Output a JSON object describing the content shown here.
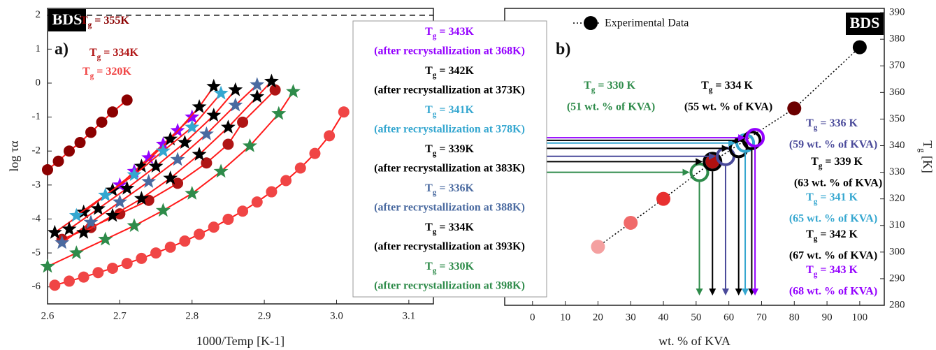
{
  "chart_data": [
    {
      "type": "scatter",
      "x_label": "1000/Temp [K-1]",
      "y_label": "log τα",
      "badge": "BDS",
      "panel": "a)",
      "xlim": [
        2.6,
        3.134
      ],
      "ylim": [
        -6.5,
        2.2
      ],
      "xticks": [
        2.6,
        2.7,
        2.8,
        2.9,
        {
          "value": 3,
          "label": "3.0"
        },
        3.1
      ],
      "yticks": [
        -6,
        -5,
        -4,
        -3,
        -2,
        -1,
        0,
        1,
        2
      ],
      "hline": 2,
      "fit_color": "#ff1a1a",
      "series": [
        {
          "name": "Tg = 355K",
          "color": "#8b0000",
          "marker": "circle",
          "x": [
            2.6,
            2.615,
            2.63,
            2.645,
            2.66,
            2.675,
            2.69,
            2.71
          ],
          "values": [
            -2.55,
            -2.3,
            -2.0,
            -1.75,
            -1.45,
            -1.15,
            -0.85,
            -0.5
          ]
        },
        {
          "name": "Tg = 334K",
          "color": "#b01515",
          "marker": "circle",
          "x": [
            2.62,
            2.66,
            2.7,
            2.74,
            2.78,
            2.82,
            2.85,
            2.87,
            2.915
          ],
          "values": [
            -4.6,
            -4.25,
            -3.85,
            -3.45,
            -2.95,
            -2.35,
            -1.8,
            -1.15,
            -0.2
          ]
        },
        {
          "name": "Tg = 320K",
          "color": "#f04545",
          "marker": "circle",
          "x": [
            2.61,
            2.63,
            2.65,
            2.67,
            2.69,
            2.71,
            2.73,
            2.75,
            2.77,
            2.79,
            2.81,
            2.83,
            2.85,
            2.87,
            2.89,
            2.91,
            2.93,
            2.95,
            2.97,
            2.99,
            3.01
          ],
          "values": [
            -5.95,
            -5.83,
            -5.71,
            -5.58,
            -5.45,
            -5.31,
            -5.16,
            -5.0,
            -4.83,
            -4.65,
            -4.45,
            -4.24,
            -4.01,
            -3.77,
            -3.5,
            -3.2,
            -2.87,
            -2.5,
            -2.07,
            -1.55,
            -0.85
          ]
        },
        {
          "name": "Tg = 343K",
          "note": "(after recrystallization at 368K)",
          "color": "#9400ff",
          "marker": "star",
          "x": [
            2.7,
            2.72,
            2.74,
            2.76,
            2.78,
            2.8
          ],
          "values": [
            -3.0,
            -2.6,
            -2.2,
            -1.8,
            -1.4,
            -1.0
          ]
        },
        {
          "name": "Tg = 342K",
          "note": "(after recrystallization at 373K)",
          "color": "#000000",
          "marker": "star",
          "x": [
            2.61,
            2.65,
            2.69,
            2.73,
            2.77,
            2.81,
            2.83
          ],
          "values": [
            -4.4,
            -3.8,
            -3.15,
            -2.45,
            -1.65,
            -0.7,
            -0.1
          ]
        },
        {
          "name": "Tg = 341K",
          "note": "(after recrystallization at 378K)",
          "color": "#35a7d0",
          "marker": "star",
          "x": [
            2.64,
            2.68,
            2.72,
            2.76,
            2.8,
            2.84
          ],
          "values": [
            -3.9,
            -3.3,
            -2.7,
            -2.0,
            -1.3,
            -0.3
          ]
        },
        {
          "name": "Tg = 339K",
          "note": "(after recrystallization at 383K)",
          "color": "#000000",
          "marker": "star",
          "x": [
            2.63,
            2.67,
            2.71,
            2.75,
            2.79,
            2.83,
            2.86
          ],
          "values": [
            -4.3,
            -3.7,
            -3.1,
            -2.45,
            -1.75,
            -0.95,
            -0.2
          ]
        },
        {
          "name": "Tg = 336K",
          "note": "(after recrystallization at 388K)",
          "color": "#4a6aa0",
          "marker": "star",
          "x": [
            2.62,
            2.66,
            2.7,
            2.74,
            2.78,
            2.82,
            2.86,
            2.89
          ],
          "values": [
            -4.7,
            -4.1,
            -3.5,
            -2.9,
            -2.25,
            -1.5,
            -0.65,
            -0.05
          ]
        },
        {
          "name": "Tg = 334K",
          "note": "(after recrystallization at 393K)",
          "color": "#000000",
          "marker": "star",
          "x": [
            2.65,
            2.69,
            2.73,
            2.77,
            2.81,
            2.85,
            2.89,
            2.91
          ],
          "values": [
            -4.4,
            -3.9,
            -3.4,
            -2.8,
            -2.1,
            -1.3,
            -0.4,
            0.05
          ]
        },
        {
          "name": "Tg = 330K",
          "note": "(after recrystallization at 398K)",
          "color": "#2e8b4a",
          "marker": "star",
          "x": [
            2.6,
            2.64,
            2.68,
            2.72,
            2.76,
            2.8,
            2.84,
            2.88,
            2.92,
            2.94
          ],
          "values": [
            -5.4,
            -5.0,
            -4.6,
            -4.2,
            -3.75,
            -3.25,
            -2.6,
            -1.85,
            -0.9,
            -0.25
          ]
        }
      ]
    },
    {
      "type": "scatter",
      "x_label": "wt. % of KVA",
      "y_label": "Tg [K]",
      "badge": "BDS",
      "panel": "b)",
      "xlim": [
        -8.5,
        107.5
      ],
      "ylim": [
        280,
        391.6
      ],
      "xticks": [
        0,
        10,
        20,
        30,
        40,
        50,
        60,
        70,
        80,
        90,
        100
      ],
      "yticks": [
        280,
        290,
        300,
        310,
        320,
        330,
        340,
        350,
        360,
        370,
        380,
        390
      ],
      "series": [
        {
          "name": "Experimental Data",
          "color": "#000000",
          "marker": "filled",
          "x": [
            20,
            30,
            40,
            55,
            80,
            100
          ],
          "values": [
            302,
            311,
            320,
            334,
            354,
            377
          ],
          "point_colors": [
            "#f4a0a0",
            "#f06a6a",
            "#e83030",
            "#b01010",
            "#6b0000",
            "#000000"
          ]
        },
        {
          "name": "Tg = 330 K",
          "label": "(51 wt. % of KVA)",
          "color": "#2e8b4a",
          "marker": "ring",
          "x": [
            51
          ],
          "values": [
            330
          ]
        },
        {
          "name": "Tg = 334 K",
          "label": "(55 wt. % of KVA)",
          "color": "#000000",
          "marker": "ring",
          "x": [
            55
          ],
          "values": [
            334
          ]
        },
        {
          "name": "Tg = 336 K",
          "label": "(59 wt. % of KVA)",
          "color": "#4a4a9a",
          "marker": "ring",
          "x": [
            59
          ],
          "values": [
            336
          ]
        },
        {
          "name": "Tg = 339 K",
          "label": "(63 wt. % of KVA)",
          "color": "#000000",
          "marker": "ring",
          "x": [
            63
          ],
          "values": [
            339
          ]
        },
        {
          "name": "Tg = 341 K",
          "label": "(65 wt. % of KVA)",
          "color": "#35a7d0",
          "marker": "ring",
          "x": [
            65
          ],
          "values": [
            341
          ]
        },
        {
          "name": "Tg = 342 K",
          "label": "(67 wt. % of KVA)",
          "color": "#000000",
          "marker": "ring",
          "x": [
            67
          ],
          "values": [
            342
          ]
        },
        {
          "name": "Tg = 343 K",
          "label": "(68 wt. % of KVA)",
          "color": "#9400ff",
          "marker": "ring",
          "x": [
            68
          ],
          "values": [
            343
          ]
        }
      ]
    }
  ]
}
